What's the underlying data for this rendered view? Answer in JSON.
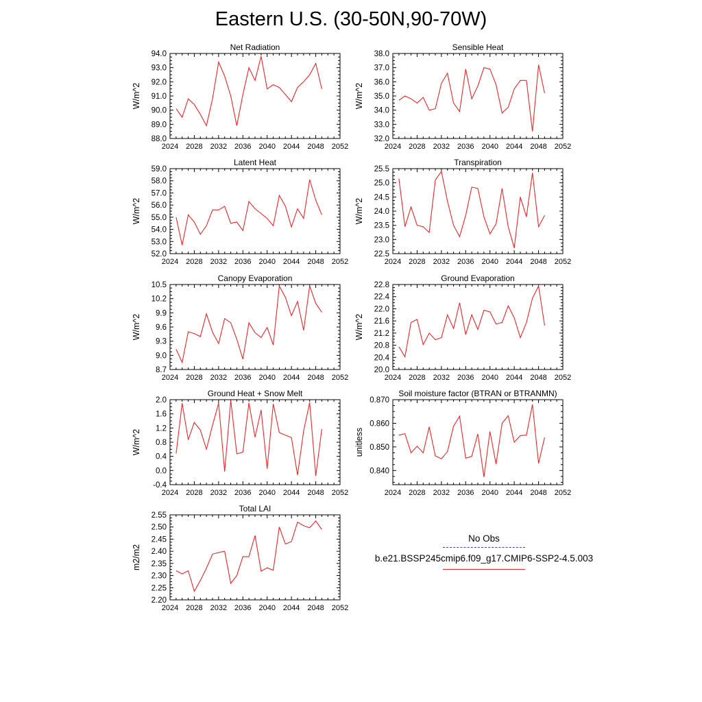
{
  "page_title": "Eastern U.S. (30-50N,90-70W)",
  "legend": {
    "obs_label": "No Obs",
    "obs_color": "#4a3aa6",
    "model_label": "b.e21.BSSP245cmip6.f09_g17.CMIP6-SSP2-4.5.003",
    "model_color": "#e8262b"
  },
  "chart_data": [
    {
      "type": "line",
      "title": "Net Radiation",
      "ylabel": "W/m^2",
      "xlim": [
        2024,
        2052
      ],
      "ylim": [
        88.0,
        94.0
      ],
      "xticks": [
        2024,
        2028,
        2032,
        2036,
        2040,
        2044,
        2048,
        2052
      ],
      "xtick_labels": [
        "2024",
        "2028",
        "2032",
        "2036",
        "2040",
        "2044",
        "2048",
        "2052"
      ],
      "yticks": [
        88.0,
        89.0,
        90.0,
        91.0,
        92.0,
        93.0,
        94.0
      ],
      "ytick_labels": [
        "88.0",
        "89.0",
        "90.0",
        "91.0",
        "92.0",
        "93.0",
        "94.0"
      ],
      "x": [
        2025,
        2026,
        2027,
        2028,
        2029,
        2030,
        2031,
        2032,
        2033,
        2034,
        2035,
        2036,
        2037,
        2038,
        2039,
        2040,
        2041,
        2042,
        2043,
        2044,
        2045,
        2046,
        2047,
        2048,
        2049
      ],
      "series": [
        {
          "values": [
            90.1,
            89.5,
            90.8,
            90.4,
            89.7,
            88.9,
            90.8,
            93.4,
            92.4,
            91.0,
            88.9,
            91.1,
            93.0,
            92.1,
            93.8,
            91.5,
            91.8,
            91.6,
            91.1,
            90.6,
            91.6,
            92.0,
            92.5,
            93.3,
            91.5
          ]
        }
      ]
    },
    {
      "type": "line",
      "title": "Sensible Heat",
      "ylabel": "W/m^2",
      "xlim": [
        2024,
        2052
      ],
      "ylim": [
        32.0,
        38.0
      ],
      "xticks": [
        2024,
        2028,
        2032,
        2036,
        2040,
        2044,
        2048,
        2052
      ],
      "xtick_labels": [
        "2024",
        "2028",
        "2032",
        "2036",
        "2040",
        "2044",
        "2048",
        "2052"
      ],
      "yticks": [
        32.0,
        33.0,
        34.0,
        35.0,
        36.0,
        37.0,
        38.0
      ],
      "ytick_labels": [
        "32.0",
        "33.0",
        "34.0",
        "35.0",
        "36.0",
        "37.0",
        "38.0"
      ],
      "x": [
        2025,
        2026,
        2027,
        2028,
        2029,
        2030,
        2031,
        2032,
        2033,
        2034,
        2035,
        2036,
        2037,
        2038,
        2039,
        2040,
        2041,
        2042,
        2043,
        2044,
        2045,
        2046,
        2047,
        2048,
        2049
      ],
      "series": [
        {
          "values": [
            34.7,
            35.0,
            34.8,
            34.5,
            34.9,
            34.0,
            34.1,
            35.9,
            36.6,
            34.5,
            33.9,
            36.9,
            34.8,
            35.7,
            37.0,
            36.9,
            35.8,
            33.8,
            34.2,
            35.5,
            36.1,
            36.1,
            32.5,
            37.2,
            35.2
          ]
        }
      ]
    },
    {
      "type": "line",
      "title": "Latent Heat",
      "ylabel": "W/m^2",
      "xlim": [
        2024,
        2052
      ],
      "ylim": [
        52.0,
        59.0
      ],
      "xticks": [
        2024,
        2028,
        2032,
        2036,
        2040,
        2044,
        2048,
        2052
      ],
      "xtick_labels": [
        "2024",
        "2028",
        "2032",
        "2036",
        "2040",
        "2044",
        "2048",
        "2052"
      ],
      "yticks": [
        52.0,
        53.0,
        54.0,
        55.0,
        56.0,
        57.0,
        58.0,
        59.0
      ],
      "ytick_labels": [
        "52.0",
        "53.0",
        "54.0",
        "55.0",
        "56.0",
        "57.0",
        "58.0",
        "59.0"
      ],
      "x": [
        2025,
        2026,
        2027,
        2028,
        2029,
        2030,
        2031,
        2032,
        2033,
        2034,
        2035,
        2036,
        2037,
        2038,
        2039,
        2040,
        2041,
        2042,
        2043,
        2044,
        2045,
        2046,
        2047,
        2048,
        2049
      ],
      "series": [
        {
          "values": [
            55.0,
            52.7,
            55.2,
            54.6,
            53.6,
            54.3,
            55.6,
            55.6,
            55.9,
            54.5,
            54.6,
            53.9,
            56.3,
            55.7,
            55.3,
            54.9,
            54.3,
            56.8,
            55.9,
            54.2,
            55.7,
            54.9,
            58.1,
            56.4,
            55.2
          ]
        }
      ]
    },
    {
      "type": "line",
      "title": "Transpiration",
      "ylabel": "W/m^2",
      "xlim": [
        2024,
        2052
      ],
      "ylim": [
        22.5,
        25.5
      ],
      "xticks": [
        2024,
        2028,
        2032,
        2036,
        2040,
        2044,
        2048,
        2052
      ],
      "xtick_labels": [
        "2024",
        "2028",
        "2032",
        "2036",
        "2040",
        "2044",
        "2048",
        "2052"
      ],
      "yticks": [
        22.5,
        23.0,
        23.5,
        24.0,
        24.5,
        25.0,
        25.5
      ],
      "ytick_labels": [
        "22.5",
        "23.0",
        "23.5",
        "24.0",
        "24.5",
        "25.0",
        "25.5"
      ],
      "x": [
        2025,
        2026,
        2027,
        2028,
        2029,
        2030,
        2031,
        2032,
        2033,
        2034,
        2035,
        2036,
        2037,
        2038,
        2039,
        2040,
        2041,
        2042,
        2043,
        2044,
        2045,
        2046,
        2047,
        2048,
        2049
      ],
      "series": [
        {
          "values": [
            25.15,
            23.45,
            24.15,
            23.5,
            23.45,
            23.25,
            25.1,
            25.4,
            24.35,
            23.5,
            23.1,
            23.85,
            24.85,
            24.8,
            23.8,
            23.2,
            23.55,
            24.8,
            23.45,
            22.7,
            24.5,
            23.8,
            25.35,
            23.45,
            23.85
          ]
        }
      ]
    },
    {
      "type": "line",
      "title": "Canopy Evaporation",
      "ylabel": "W/m^2",
      "xlim": [
        2024,
        2052
      ],
      "ylim": [
        8.7,
        10.5
      ],
      "xticks": [
        2024,
        2028,
        2032,
        2036,
        2040,
        2044,
        2048,
        2052
      ],
      "xtick_labels": [
        "2024",
        "2028",
        "2032",
        "2036",
        "2040",
        "2044",
        "2048",
        "2052"
      ],
      "yticks": [
        8.7,
        9.0,
        9.3,
        9.6,
        9.9,
        10.2,
        10.5
      ],
      "ytick_labels": [
        "8.7",
        "9.0",
        "9.3",
        "9.6",
        "9.9",
        "10.2",
        "10.5"
      ],
      "x": [
        2025,
        2026,
        2027,
        2028,
        2029,
        2030,
        2031,
        2032,
        2033,
        2034,
        2035,
        2036,
        2037,
        2038,
        2039,
        2040,
        2041,
        2042,
        2043,
        2044,
        2045,
        2046,
        2047,
        2048,
        2049
      ],
      "series": [
        {
          "values": [
            9.13,
            8.85,
            9.5,
            9.46,
            9.4,
            9.88,
            9.49,
            9.25,
            9.78,
            9.69,
            9.34,
            8.92,
            9.69,
            9.48,
            9.38,
            9.59,
            9.22,
            10.47,
            10.23,
            9.84,
            10.14,
            9.53,
            10.47,
            10.1,
            9.91
          ]
        }
      ]
    },
    {
      "type": "line",
      "title": "Ground Evaporation",
      "ylabel": "W/m^2",
      "xlim": [
        2024,
        2052
      ],
      "ylim": [
        20.0,
        22.8
      ],
      "xticks": [
        2024,
        2028,
        2032,
        2036,
        2040,
        2044,
        2048,
        2052
      ],
      "xtick_labels": [
        "2024",
        "2028",
        "2032",
        "2036",
        "2040",
        "2044",
        "2048",
        "2052"
      ],
      "yticks": [
        20.0,
        20.4,
        20.8,
        21.2,
        21.6,
        22.0,
        22.4,
        22.8
      ],
      "ytick_labels": [
        "20.0",
        "20.4",
        "20.8",
        "21.2",
        "21.6",
        "22.0",
        "22.4",
        "22.8"
      ],
      "x": [
        2025,
        2026,
        2027,
        2028,
        2029,
        2030,
        2031,
        2032,
        2033,
        2034,
        2035,
        2036,
        2037,
        2038,
        2039,
        2040,
        2041,
        2042,
        2043,
        2044,
        2045,
        2046,
        2047,
        2048,
        2049
      ],
      "series": [
        {
          "values": [
            20.75,
            20.42,
            21.55,
            21.65,
            20.82,
            21.2,
            20.98,
            21.05,
            21.8,
            21.35,
            22.2,
            21.15,
            21.8,
            21.32,
            21.95,
            21.9,
            21.5,
            21.55,
            22.1,
            21.7,
            21.05,
            21.55,
            22.35,
            22.75,
            21.45
          ]
        }
      ]
    },
    {
      "type": "line",
      "title": "Ground Heat + Snow Melt",
      "ylabel": "W/m^2",
      "xlim": [
        2024,
        2052
      ],
      "ylim": [
        -0.4,
        2.0
      ],
      "xticks": [
        2024,
        2028,
        2032,
        2036,
        2040,
        2044,
        2048,
        2052
      ],
      "xtick_labels": [
        "2024",
        "2028",
        "2032",
        "2036",
        "2040",
        "2044",
        "2048",
        "2052"
      ],
      "yticks": [
        -0.4,
        0.0,
        0.4,
        0.8,
        1.2,
        1.6,
        2.0
      ],
      "ytick_labels": [
        "-0.4",
        "0.0",
        "0.4",
        "0.8",
        "1.2",
        "1.6",
        "2.0"
      ],
      "x": [
        2025,
        2026,
        2027,
        2028,
        2029,
        2030,
        2031,
        2032,
        2033,
        2034,
        2035,
        2036,
        2037,
        2038,
        2039,
        2040,
        2041,
        2042,
        2043,
        2044,
        2045,
        2046,
        2047,
        2048,
        2049
      ],
      "series": [
        {
          "values": [
            0.48,
            1.9,
            0.87,
            1.36,
            1.14,
            0.6,
            1.28,
            1.9,
            -0.03,
            1.98,
            0.47,
            0.52,
            1.91,
            0.94,
            1.71,
            0.05,
            1.88,
            1.07,
            1.0,
            0.93,
            -0.13,
            1.12,
            1.92,
            -0.15,
            1.17
          ]
        }
      ]
    },
    {
      "type": "line",
      "title": "Soil moisture factor (BTRAN or BTRANMN)",
      "ylabel": "unitless",
      "xlim": [
        2024,
        2052
      ],
      "ylim": [
        0.834,
        0.87
      ],
      "xticks": [
        2024,
        2028,
        2032,
        2036,
        2040,
        2044,
        2048,
        2052
      ],
      "xtick_labels": [
        "2024",
        "2028",
        "2032",
        "2036",
        "2040",
        "2044",
        "2048",
        "2052"
      ],
      "yticks": [
        0.84,
        0.85,
        0.86,
        0.87
      ],
      "ytick_labels": [
        "0.840",
        "0.850",
        "0.860",
        "0.870"
      ],
      "x": [
        2025,
        2026,
        2027,
        2028,
        2029,
        2030,
        2031,
        2032,
        2033,
        2034,
        2035,
        2036,
        2037,
        2038,
        2039,
        2040,
        2041,
        2042,
        2043,
        2044,
        2045,
        2046,
        2047,
        2048,
        2049
      ],
      "series": [
        {
          "values": [
            0.855,
            0.8556,
            0.8475,
            0.8503,
            0.8475,
            0.8585,
            0.8462,
            0.845,
            0.848,
            0.8588,
            0.863,
            0.8452,
            0.846,
            0.8555,
            0.8372,
            0.8565,
            0.8427,
            0.86,
            0.8632,
            0.852,
            0.8548,
            0.855,
            0.868,
            0.843,
            0.854
          ]
        }
      ]
    },
    {
      "type": "line",
      "title": "Total LAI",
      "ylabel": "m2/m2",
      "xlim": [
        2024,
        2052
      ],
      "ylim": [
        2.2,
        2.55
      ],
      "xticks": [
        2024,
        2028,
        2032,
        2036,
        2040,
        2044,
        2048,
        2052
      ],
      "xtick_labels": [
        "2024",
        "2028",
        "2032",
        "2036",
        "2040",
        "2044",
        "2048",
        "2052"
      ],
      "yticks": [
        2.2,
        2.25,
        2.3,
        2.35,
        2.4,
        2.45,
        2.5,
        2.55
      ],
      "ytick_labels": [
        "2.20",
        "2.25",
        "2.30",
        "2.35",
        "2.40",
        "2.45",
        "2.50",
        "2.55"
      ],
      "x": [
        2025,
        2026,
        2027,
        2028,
        2029,
        2030,
        2031,
        2032,
        2033,
        2034,
        2035,
        2036,
        2037,
        2038,
        2039,
        2040,
        2041,
        2042,
        2043,
        2044,
        2045,
        2046,
        2047,
        2048,
        2049
      ],
      "series": [
        {
          "values": [
            2.32,
            2.307,
            2.32,
            2.235,
            2.28,
            2.33,
            2.388,
            2.395,
            2.4,
            2.268,
            2.3,
            2.378,
            2.378,
            2.465,
            2.318,
            2.332,
            2.322,
            2.5,
            2.43,
            2.44,
            2.52,
            2.505,
            2.497,
            2.525,
            2.49
          ]
        }
      ]
    }
  ]
}
